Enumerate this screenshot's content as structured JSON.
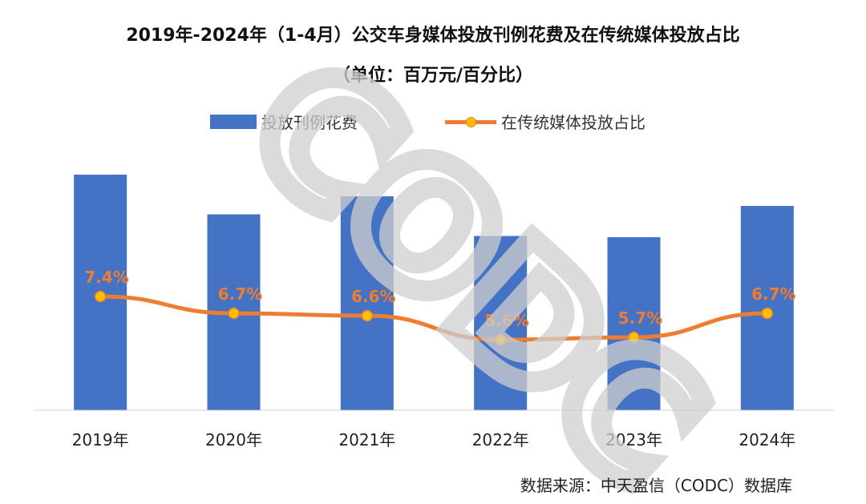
{
  "title_line1": "2019年-2024年（1-4月）公交车身媒体投放刊例花费及在传统媒体投放占比",
  "title_line2": "（单位：百万元/百分比）",
  "source": "数据来源：中天盈信（CODC）数据库",
  "watermark_text": "CODC",
  "colors": {
    "bar": "#4472c4",
    "line": "#ed7d31",
    "marker": "#ffc000",
    "label": "#ed7d31"
  },
  "chart_data": {
    "type": "bar",
    "categories": [
      "2019年",
      "2020年",
      "2021年",
      "2022年",
      "2023年",
      "2024年"
    ],
    "series": [
      {
        "name": "投放刊例花费",
        "type": "bar",
        "values": [
          9.8,
          8.15,
          8.9,
          7.25,
          7.2,
          8.5
        ]
      },
      {
        "name": "在传统媒体投放占比",
        "type": "line",
        "values": [
          7.4,
          6.7,
          6.6,
          5.6,
          5.7,
          6.7
        ],
        "labels": [
          "7.4%",
          "6.7%",
          "6.6%",
          "5.6%",
          "5.7%",
          "6.7%"
        ]
      }
    ],
    "legend_position": "top",
    "grid": false
  }
}
